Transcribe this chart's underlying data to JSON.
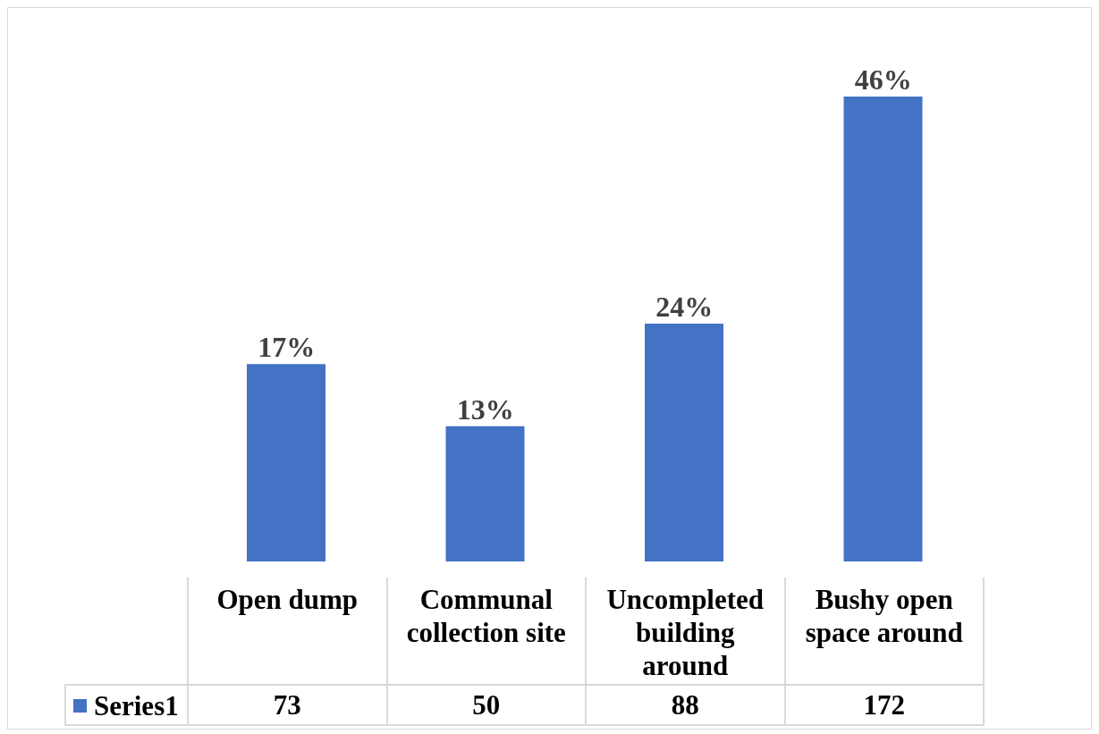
{
  "chart_data": {
    "type": "bar",
    "categories": [
      "Open dump",
      "Communal collection site",
      "Uncompleted building around",
      "Bushy open space around"
    ],
    "series": [
      {
        "name": "Series1",
        "color": "#4472c4",
        "values": [
          73,
          50,
          88,
          172
        ]
      }
    ],
    "data_labels": true,
    "annotations": [
      {
        "text": "17%",
        "x": "Open dump",
        "y": 73
      },
      {
        "text": "13%",
        "x": "Communal collection site",
        "y": 50
      },
      {
        "text": "24%",
        "x": "Uncompleted building around",
        "y": 88
      },
      {
        "text": "46%",
        "x": "Bushy open space around",
        "y": 172
      }
    ],
    "legend": "bottom left"
  }
}
